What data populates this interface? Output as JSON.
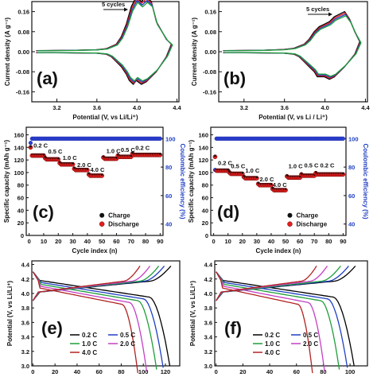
{
  "chart_data": [
    {
      "panel": "(a)",
      "type": "line",
      "xlabel": "Potential (V, vs Li/Li⁺)",
      "ylabel": "Current density (A g⁻¹)",
      "xticks": [
        "3.2",
        "3.6",
        "4.0",
        "4.4"
      ],
      "yticks": [
        "0.16",
        "0.08",
        "0.00",
        "-0.08",
        "-0.16"
      ],
      "xlim": [
        2.95,
        4.42
      ],
      "ylim": [
        -0.2,
        0.2
      ],
      "annotation": "5 cycles",
      "colors": [
        "#000000",
        "#e31a1c",
        "#1f3fc4",
        "#1f9e3a"
      ],
      "series": [
        {
          "x": [
            3.0,
            3.2,
            3.4,
            3.6,
            3.7,
            3.8,
            3.85,
            3.9,
            3.95,
            4.0,
            4.05,
            4.1,
            4.15,
            4.2,
            4.3,
            4.35,
            4.3,
            4.2,
            4.1,
            4.05,
            4.0,
            3.97,
            3.93,
            3.9,
            3.85,
            3.8,
            3.75,
            3.7,
            3.6,
            3.4,
            3.2,
            3.0
          ],
          "y": [
            0.004,
            0.005,
            0.006,
            0.008,
            0.012,
            0.03,
            0.06,
            0.11,
            0.18,
            0.22,
            0.2,
            0.22,
            0.2,
            0.12,
            0.05,
            0.03,
            -0.02,
            -0.08,
            -0.12,
            -0.13,
            -0.115,
            -0.13,
            -0.115,
            -0.09,
            -0.06,
            -0.04,
            -0.02,
            -0.01,
            -0.006,
            -0.005,
            -0.004,
            -0.004
          ]
        }
      ]
    },
    {
      "panel": "(b)",
      "type": "line",
      "xlabel": "Potential (V, vs Li / Li⁺)",
      "ylabel": "Current density (A g⁻¹)",
      "xticks": [
        "3.2",
        "3.6",
        "4.0",
        "4.4"
      ],
      "yticks": [
        "0.16",
        "0.08",
        "0.00",
        "-0.08",
        "-0.16"
      ],
      "xlim": [
        2.95,
        4.42
      ],
      "ylim": [
        -0.2,
        0.2
      ],
      "annotation": "5 cycles",
      "colors": [
        "#000000",
        "#e31a1c",
        "#1f3fc4",
        "#1f9e3a"
      ],
      "series": [
        {
          "x": [
            3.0,
            3.2,
            3.4,
            3.6,
            3.7,
            3.8,
            3.85,
            3.9,
            3.95,
            4.0,
            4.05,
            4.1,
            4.15,
            4.2,
            4.25,
            4.3,
            4.35,
            4.3,
            4.2,
            4.1,
            4.05,
            4.0,
            3.97,
            3.93,
            3.9,
            3.85,
            3.8,
            3.75,
            3.7,
            3.6,
            3.4,
            3.2,
            3.0
          ],
          "y": [
            0.004,
            0.005,
            0.006,
            0.009,
            0.014,
            0.03,
            0.05,
            0.08,
            0.1,
            0.11,
            0.12,
            0.14,
            0.15,
            0.16,
            0.13,
            0.08,
            0.04,
            -0.01,
            -0.06,
            -0.1,
            -0.11,
            -0.1,
            -0.1,
            -0.1,
            -0.08,
            -0.06,
            -0.04,
            -0.02,
            -0.01,
            -0.006,
            -0.005,
            -0.004,
            -0.004
          ]
        }
      ]
    },
    {
      "panel": "(c)",
      "type": "scatter",
      "xlabel": "Cycle index (n)",
      "ylabel": "Specific capacity (mAh g⁻¹)",
      "ylabel_right": "Coulombic efficiency (%)",
      "xticks": [
        "0",
        "10",
        "20",
        "30",
        "40",
        "50",
        "60",
        "70",
        "80",
        "90"
      ],
      "yticks": [
        "0",
        "20",
        "40",
        "60",
        "80",
        "100",
        "120",
        "140",
        "160"
      ],
      "yticks_right": [
        "40",
        "60",
        "80",
        "100"
      ],
      "xlim": [
        -2,
        92
      ],
      "ylim": [
        0,
        172
      ],
      "ylim_right": [
        32,
        108
      ],
      "rate_labels": [
        {
          "text": "0.2 C",
          "x": 3,
          "y": 140
        },
        {
          "text": "0.5 C",
          "x": 13,
          "y": 130
        },
        {
          "text": "1.0 C",
          "x": 23,
          "y": 120
        },
        {
          "text": "2.0 C",
          "x": 33,
          "y": 109
        },
        {
          "text": "4.0 C",
          "x": 42,
          "y": 101
        },
        {
          "text": "1.0 C",
          "x": 53,
          "y": 131
        },
        {
          "text": "0.5 C",
          "x": 63,
          "y": 133
        },
        {
          "text": "0.2 C",
          "x": 73,
          "y": 136
        }
      ],
      "legend": [
        "Charge",
        "Discharge"
      ],
      "blocks": [
        {
          "from": 1,
          "to": 10,
          "capacity": 127
        },
        {
          "from": 11,
          "to": 20,
          "capacity": 121
        },
        {
          "from": 21,
          "to": 30,
          "capacity": 113
        },
        {
          "from": 31,
          "to": 40,
          "capacity": 104
        },
        {
          "from": 41,
          "to": 50,
          "capacity": 95
        },
        {
          "from": 51,
          "to": 60,
          "capacity": 122
        },
        {
          "from": 61,
          "to": 70,
          "capacity": 125
        },
        {
          "from": 71,
          "to": 90,
          "capacity": 128
        }
      ],
      "first_cycle_capacity": 140,
      "efficiency_value": 100,
      "efficiency_first": 97
    },
    {
      "panel": "(d)",
      "type": "scatter",
      "xlabel": "Cycle index (n)",
      "ylabel": "Specific capacity (mAh g⁻¹)",
      "ylabel_right": "Coulombic efficiency (%)",
      "xticks": [
        "0",
        "10",
        "20",
        "30",
        "40",
        "50",
        "60",
        "70",
        "80",
        "90"
      ],
      "yticks": [
        "0",
        "20",
        "40",
        "60",
        "80",
        "100",
        "120",
        "140",
        "160"
      ],
      "yticks_right": [
        "40",
        "60",
        "80",
        "100"
      ],
      "xlim": [
        -2,
        92
      ],
      "ylim": [
        0,
        172
      ],
      "ylim_right": [
        32,
        108
      ],
      "rate_labels": [
        {
          "text": "0.2 C",
          "x": 3,
          "y": 112
        },
        {
          "text": "0.5 C",
          "x": 12,
          "y": 107
        },
        {
          "text": "1.0 C",
          "x": 22,
          "y": 100
        },
        {
          "text": "2.0 C",
          "x": 32,
          "y": 86
        },
        {
          "text": "4.0 C",
          "x": 41,
          "y": 77
        },
        {
          "text": "1.0 C",
          "x": 52,
          "y": 107
        },
        {
          "text": "0.5 C",
          "x": 63,
          "y": 108
        },
        {
          "text": "0.2 C",
          "x": 74,
          "y": 108
        }
      ],
      "legend": [
        "Charge",
        "Discharge"
      ],
      "blocks": [
        {
          "from": 1,
          "to": 10,
          "capacity": 103
        },
        {
          "from": 11,
          "to": 20,
          "capacity": 98
        },
        {
          "from": 21,
          "to": 30,
          "capacity": 91
        },
        {
          "from": 31,
          "to": 40,
          "capacity": 80
        },
        {
          "from": 41,
          "to": 50,
          "capacity": 72
        },
        {
          "from": 51,
          "to": 60,
          "capacity": 92
        },
        {
          "from": 61,
          "to": 70,
          "capacity": 95
        },
        {
          "from": 71,
          "to": 90,
          "capacity": 97
        }
      ],
      "first_cycle_capacity": 125,
      "efficiency_value": 100,
      "efficiency_first": 78
    },
    {
      "panel": "(e)",
      "type": "line",
      "xlabel": "",
      "ylabel": "Potential (V, vs Li/Li⁺)",
      "xticks": [
        "0",
        "20",
        "40",
        "60",
        "80",
        "100",
        "120"
      ],
      "yticks": [
        "3.0",
        "3.2",
        "3.4",
        "3.6",
        "3.8",
        "4.0",
        "4.2",
        "4.4"
      ],
      "xlim": [
        -1,
        133
      ],
      "ylim": [
        3.0,
        4.45
      ],
      "series": [
        {
          "name": "0.2 C",
          "color": "#000000",
          "charge_capacity": 125,
          "discharge_capacity": 124
        },
        {
          "name": "0.5 C",
          "color": "#1f3fc4",
          "charge_capacity": 119,
          "discharge_capacity": 118
        },
        {
          "name": "1.0 C",
          "color": "#1f9e3a",
          "charge_capacity": 114,
          "discharge_capacity": 112
        },
        {
          "name": "2.0 C",
          "color": "#c43fc4",
          "charge_capacity": 106,
          "discharge_capacity": 103
        },
        {
          "name": "4.0 C",
          "color": "#b22222",
          "charge_capacity": 97,
          "discharge_capacity": 95
        }
      ]
    },
    {
      "panel": "(f)",
      "type": "line",
      "xlabel": "",
      "ylabel": "Potential (V, vs Li/Li⁺)",
      "xticks": [
        "0",
        "20",
        "40",
        "60",
        "80",
        "100"
      ],
      "yticks": [
        "3.0",
        "3.2",
        "3.4",
        "3.6",
        "3.8",
        "4.0",
        "4.2",
        "4.4"
      ],
      "xlim": [
        -1,
        113
      ],
      "ylim": [
        3.0,
        4.45
      ],
      "series": [
        {
          "name": "0.2 C",
          "color": "#000000",
          "charge_capacity": 104,
          "discharge_capacity": 103
        },
        {
          "name": "0.5 C",
          "color": "#1f3fc4",
          "charge_capacity": 99,
          "discharge_capacity": 98
        },
        {
          "name": "1.0 C",
          "color": "#1f9e3a",
          "charge_capacity": 93,
          "discharge_capacity": 92
        },
        {
          "name": "2.0 C",
          "color": "#c43fc4",
          "charge_capacity": 83,
          "discharge_capacity": 81
        },
        {
          "name": "4.0 C",
          "color": "#b22222",
          "charge_capacity": 75,
          "discharge_capacity": 72
        }
      ]
    }
  ]
}
